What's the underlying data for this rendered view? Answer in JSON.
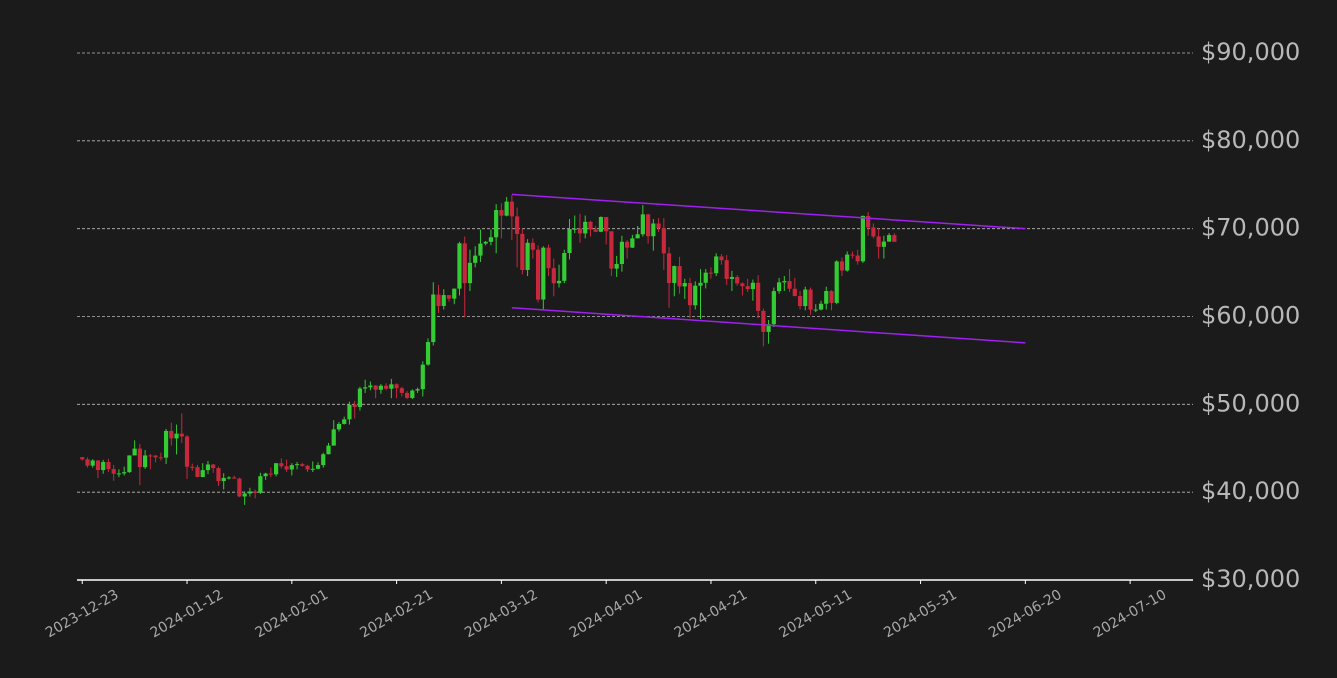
{
  "chart_data": {
    "type": "candlestick",
    "x": [
      "2023-12-23",
      "2023-12-24",
      "2023-12-25",
      "2023-12-26",
      "2023-12-27",
      "2023-12-28",
      "2023-12-29",
      "2023-12-30",
      "2023-12-31",
      "2024-01-01",
      "2024-01-02",
      "2024-01-03",
      "2024-01-04",
      "2024-01-05",
      "2024-01-06",
      "2024-01-07",
      "2024-01-08",
      "2024-01-09",
      "2024-01-10",
      "2024-01-11",
      "2024-01-12",
      "2024-01-13",
      "2024-01-14",
      "2024-01-15",
      "2024-01-16",
      "2024-01-17",
      "2024-01-18",
      "2024-01-19",
      "2024-01-20",
      "2024-01-21",
      "2024-01-22",
      "2024-01-23",
      "2024-01-24",
      "2024-01-25",
      "2024-01-26",
      "2024-01-27",
      "2024-01-28",
      "2024-01-29",
      "2024-01-30",
      "2024-01-31",
      "2024-02-01",
      "2024-02-02",
      "2024-02-03",
      "2024-02-04",
      "2024-02-05",
      "2024-02-06",
      "2024-02-07",
      "2024-02-08",
      "2024-02-09",
      "2024-02-10",
      "2024-02-11",
      "2024-02-12",
      "2024-02-13",
      "2024-02-14",
      "2024-02-15",
      "2024-02-16",
      "2024-02-17",
      "2024-02-18",
      "2024-02-19",
      "2024-02-20",
      "2024-02-21",
      "2024-02-22",
      "2024-02-23",
      "2024-02-24",
      "2024-02-25",
      "2024-02-26",
      "2024-02-27",
      "2024-02-28",
      "2024-02-29",
      "2024-03-01",
      "2024-03-02",
      "2024-03-03",
      "2024-03-04",
      "2024-03-05",
      "2024-03-06",
      "2024-03-07",
      "2024-03-08",
      "2024-03-09",
      "2024-03-10",
      "2024-03-11",
      "2024-03-12",
      "2024-03-13",
      "2024-03-14",
      "2024-03-15",
      "2024-03-16",
      "2024-03-17",
      "2024-03-18",
      "2024-03-19",
      "2024-03-20",
      "2024-03-21",
      "2024-03-22",
      "2024-03-23",
      "2024-03-24",
      "2024-03-25",
      "2024-03-26",
      "2024-03-27",
      "2024-03-28",
      "2024-03-29",
      "2024-03-30",
      "2024-03-31",
      "2024-04-01",
      "2024-04-02",
      "2024-04-03",
      "2024-04-04",
      "2024-04-05",
      "2024-04-06",
      "2024-04-07",
      "2024-04-08",
      "2024-04-09",
      "2024-04-10",
      "2024-04-11",
      "2024-04-12",
      "2024-04-13",
      "2024-04-14",
      "2024-04-15",
      "2024-04-16",
      "2024-04-17",
      "2024-04-18",
      "2024-04-19",
      "2024-04-20",
      "2024-04-21",
      "2024-04-22",
      "2024-04-23",
      "2024-04-24",
      "2024-04-25",
      "2024-04-26",
      "2024-04-27",
      "2024-04-28",
      "2024-04-29",
      "2024-04-30",
      "2024-05-01",
      "2024-05-02",
      "2024-05-03",
      "2024-05-04",
      "2024-05-05",
      "2024-05-06",
      "2024-05-07",
      "2024-05-08",
      "2024-05-09",
      "2024-05-10",
      "2024-05-11",
      "2024-05-12",
      "2024-05-13",
      "2024-05-14",
      "2024-05-15",
      "2024-05-16",
      "2024-05-17",
      "2024-05-18",
      "2024-05-19",
      "2024-05-20",
      "2024-05-21",
      "2024-05-22",
      "2024-05-23",
      "2024-05-24",
      "2024-05-25",
      "2024-05-26"
    ],
    "open": [
      43990,
      43740,
      43020,
      43610,
      42520,
      43440,
      42630,
      42100,
      42140,
      42280,
      44180,
      44960,
      42850,
      44180,
      44160,
      43970,
      43930,
      46970,
      46120,
      46660,
      46340,
      42890,
      42850,
      41730,
      42510,
      43150,
      42740,
      41260,
      41620,
      41670,
      41550,
      39510,
      39850,
      40080,
      39930,
      41820,
      42120,
      42030,
      43300,
      42950,
      42580,
      43080,
      43190,
      43000,
      42580,
      42660,
      43090,
      44320,
      45300,
      47150,
      47770,
      48290,
      49960,
      49700,
      51800,
      51940,
      52140,
      51660,
      52120,
      51780,
      52280,
      51840,
      51300,
      50730,
      51570,
      51730,
      54520,
      57090,
      62500,
      61200,
      62440,
      62030,
      63170,
      68330,
      63800,
      66110,
      66930,
      68300,
      68500,
      69020,
      72120,
      71480,
      73080,
      71400,
      69400,
      65300,
      68390,
      67610,
      61930,
      67840,
      65500,
      63780,
      64060,
      67230,
      69960,
      69990,
      69460,
      70780,
      69900,
      69650,
      71330,
      69700,
      65450,
      65980,
      68510,
      67840,
      68900,
      69360,
      71630,
      69140,
      70590,
      70060,
      67190,
      63820,
      65740,
      63420,
      63810,
      61280,
      63510,
      63840,
      64990,
      64930,
      66840,
      66410,
      64280,
      64500,
      63770,
      63460,
      63120,
      63840,
      60640,
      58250,
      59120,
      62890,
      63890,
      64030,
      63160,
      62330,
      61190,
      63070,
      60790,
      60790,
      61450,
      62900,
      61550,
      66270,
      65230,
      67050,
      66940,
      66280,
      71450,
      70140,
      69120,
      67930,
      68530,
      69270
    ],
    "high": [
      44000,
      43950,
      43750,
      43640,
      43680,
      43800,
      43100,
      42600,
      42900,
      44200,
      45900,
      45500,
      44800,
      44350,
      44240,
      44500,
      47200,
      47900,
      47700,
      48970,
      46500,
      43250,
      43100,
      43300,
      43550,
      43200,
      42900,
      42150,
      41820,
      41880,
      41650,
      40100,
      40500,
      40300,
      42200,
      42200,
      42800,
      43300,
      43850,
      43700,
      43300,
      43450,
      43350,
      43100,
      43500,
      43400,
      44500,
      45600,
      48200,
      48000,
      48600,
      50300,
      50400,
      52000,
      52800,
      52600,
      52200,
      52300,
      52400,
      52900,
      52400,
      52000,
      51500,
      51700,
      51900,
      54900,
      57500,
      63900,
      63600,
      63100,
      62400,
      63200,
      68500,
      69100,
      67600,
      68000,
      69900,
      68600,
      69900,
      72800,
      72900,
      73600,
      73800,
      72400,
      70000,
      68800,
      68900,
      68100,
      68000,
      68200,
      66600,
      65900,
      67600,
      71100,
      71500,
      71700,
      71500,
      70900,
      70300,
      71400,
      71300,
      69700,
      66900,
      69200,
      68700,
      69300,
      70300,
      72700,
      71700,
      71100,
      71200,
      71200,
      67900,
      65800,
      66800,
      64300,
      64400,
      64000,
      65400,
      65400,
      65600,
      67200,
      67100,
      67000,
      65200,
      64700,
      63900,
      64300,
      64200,
      64700,
      60900,
      59600,
      63300,
      64400,
      64600,
      65400,
      64400,
      62900,
      63400,
      63300,
      61400,
      61800,
      63400,
      63000,
      66400,
      66700,
      67400,
      67400,
      67600,
      71500,
      71900,
      70600,
      70000,
      69200,
      69500,
      69500
    ],
    "low": [
      43580,
      42800,
      42800,
      41600,
      42100,
      42300,
      41300,
      41700,
      41900,
      42200,
      44180,
      40800,
      42650,
      42600,
      43400,
      43600,
      43200,
      45300,
      44300,
      45600,
      41500,
      42450,
      41700,
      41700,
      42050,
      42200,
      40700,
      40300,
      41450,
      41500,
      39450,
      38550,
      39500,
      39300,
      39800,
      41400,
      41700,
      41800,
      42700,
      42300,
      41900,
      42600,
      42900,
      42300,
      42300,
      42600,
      42800,
      44300,
      45300,
      46900,
      47700,
      47700,
      48400,
      49300,
      51300,
      51600,
      50700,
      51200,
      51600,
      50700,
      50700,
      50900,
      50600,
      50600,
      51300,
      50900,
      54400,
      56700,
      60400,
      60800,
      61700,
      61400,
      62400,
      59900,
      62900,
      65600,
      66200,
      68100,
      68100,
      67200,
      68900,
      71400,
      68700,
      65600,
      64800,
      64600,
      66600,
      61600,
      60800,
      64600,
      62300,
      63300,
      63800,
      66500,
      69500,
      68400,
      68900,
      69100,
      69600,
      69600,
      68200,
      64600,
      64500,
      65100,
      66600,
      67800,
      68900,
      69100,
      68300,
      67500,
      69600,
      65300,
      61000,
      62300,
      62600,
      62000,
      59800,
      60800,
      59700,
      63200,
      64300,
      64600,
      65900,
      63600,
      62900,
      63500,
      62400,
      62800,
      61800,
      59800,
      56600,
      56900,
      58800,
      62600,
      62900,
      62800,
      62300,
      60800,
      60700,
      60200,
      60500,
      60700,
      60800,
      60700,
      61400,
      64600,
      65100,
      66600,
      65900,
      66100,
      69200,
      68900,
      66600,
      66600,
      68500,
      68500
    ],
    "close": [
      43740,
      43020,
      43610,
      42520,
      43440,
      42630,
      42100,
      42140,
      42280,
      44180,
      44960,
      42850,
      44180,
      44160,
      43970,
      43930,
      46970,
      46120,
      46660,
      46340,
      42890,
      42850,
      41730,
      42510,
      43150,
      42740,
      41260,
      41620,
      41670,
      41550,
      39510,
      39850,
      40080,
      39930,
      41820,
      42120,
      42030,
      43300,
      42950,
      42580,
      43080,
      43190,
      43000,
      42580,
      42660,
      43090,
      44320,
      45300,
      47150,
      47770,
      48290,
      49960,
      49700,
      51800,
      51940,
      52140,
      51660,
      52120,
      51780,
      52280,
      51840,
      51300,
      50730,
      51570,
      51730,
      54520,
      57090,
      62500,
      61200,
      62440,
      62030,
      63170,
      68330,
      63800,
      66110,
      66930,
      68300,
      68500,
      69020,
      72120,
      71480,
      73080,
      71400,
      69400,
      65300,
      68390,
      67610,
      61930,
      67840,
      65500,
      63780,
      64060,
      67230,
      69960,
      69990,
      69460,
      70780,
      69900,
      69650,
      71330,
      69700,
      65450,
      65980,
      68510,
      67840,
      68900,
      69360,
      71630,
      69140,
      70590,
      70060,
      67190,
      63820,
      65740,
      63420,
      63810,
      61280,
      63510,
      63840,
      64990,
      64930,
      66840,
      66410,
      64280,
      64500,
      63770,
      63460,
      63120,
      63840,
      60640,
      58250,
      59120,
      62890,
      63890,
      64030,
      63160,
      62330,
      61190,
      63070,
      60790,
      60790,
      61450,
      62900,
      61550,
      66270,
      65230,
      67050,
      66940,
      66280,
      71450,
      70140,
      69120,
      67930,
      68530,
      69270,
      68500
    ],
    "up_color": "#33cc33",
    "down_color": "#c8283c",
    "trendlines": [
      {
        "x": [
          "2024-03-14",
          "2024-06-20"
        ],
        "y": [
          73900,
          70000
        ]
      },
      {
        "x": [
          "2024-03-14",
          "2024-06-20"
        ],
        "y": [
          61000,
          57000
        ]
      }
    ],
    "trendline_color": "#a020f0",
    "xlim": [
      "2023-12-22",
      "2024-07-22"
    ],
    "xticks": [
      "2023-12-23",
      "2024-01-12",
      "2024-02-01",
      "2024-02-21",
      "2024-03-12",
      "2024-04-01",
      "2024-04-21",
      "2024-05-11",
      "2024-05-31",
      "2024-06-20",
      "2024-07-10"
    ],
    "ylim": [
      30000,
      90000
    ],
    "yticks": [
      {
        "value": 30000,
        "label": "$30,000"
      },
      {
        "value": 40000,
        "label": "$40,000"
      },
      {
        "value": 50000,
        "label": "$50,000"
      },
      {
        "value": 60000,
        "label": "$60,000"
      },
      {
        "value": 70000,
        "label": "$70,000"
      },
      {
        "value": 80000,
        "label": "$80,000"
      },
      {
        "value": 90000,
        "label": "$90,000"
      }
    ],
    "grid": true
  }
}
